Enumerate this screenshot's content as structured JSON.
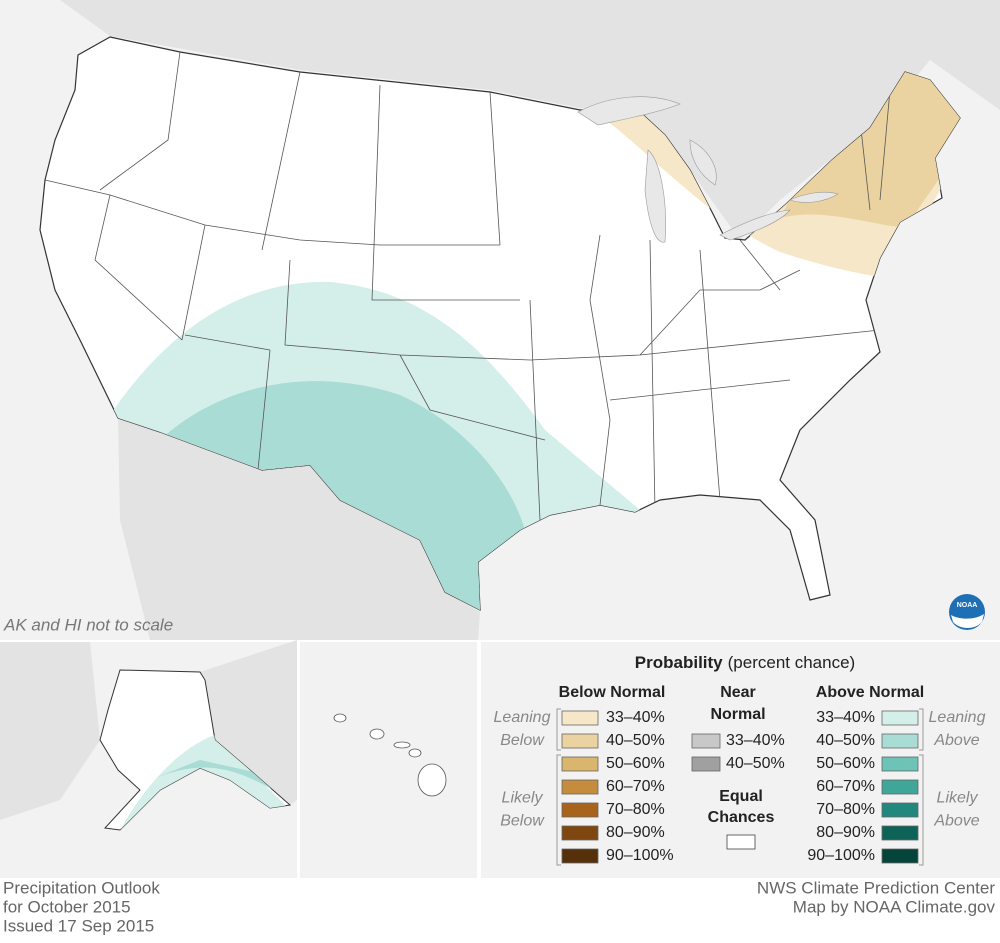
{
  "map": {
    "note": "AK and HI not to scale",
    "logo": "NOAA"
  },
  "legend": {
    "title": "Probability",
    "subtitle": "(percent chance)",
    "below": {
      "heading": [
        "Below Normal"
      ],
      "groups": [
        [
          "Leaning",
          "Below"
        ],
        [
          "Likely",
          "Below"
        ]
      ],
      "items": [
        {
          "label": "33–40%",
          "color": "#f5e7c7"
        },
        {
          "label": "40–50%",
          "color": "#ead3a0"
        },
        {
          "label": "50–60%",
          "color": "#d9b56e"
        },
        {
          "label": "60–70%",
          "color": "#c58c3e"
        },
        {
          "label": "70–80%",
          "color": "#a8631c"
        },
        {
          "label": "80–90%",
          "color": "#7f4610"
        },
        {
          "label": "90–100%",
          "color": "#55300a"
        }
      ]
    },
    "near": {
      "heading": [
        "Near",
        "Normal"
      ],
      "items": [
        {
          "label": "33–40%",
          "color": "#c8c8c8"
        },
        {
          "label": "40–50%",
          "color": "#a0a0a0"
        }
      ]
    },
    "equal": {
      "heading": [
        "Equal",
        "Chances"
      ],
      "color": "#ffffff"
    },
    "above": {
      "heading": [
        "Above Normal"
      ],
      "groups": [
        [
          "Leaning",
          "Above"
        ],
        [
          "Likely",
          "Above"
        ]
      ],
      "items": [
        {
          "label": "33–40%",
          "color": "#d4eee9"
        },
        {
          "label": "40–50%",
          "color": "#a8dcd4"
        },
        {
          "label": "50–60%",
          "color": "#6cc3b6"
        },
        {
          "label": "60–70%",
          "color": "#3fa699"
        },
        {
          "label": "70–80%",
          "color": "#22877c"
        },
        {
          "label": "80–90%",
          "color": "#0d6358"
        },
        {
          "label": "90–100%",
          "color": "#05443a"
        }
      ]
    }
  },
  "footer": {
    "left": [
      "Precipitation Outlook",
      "for October 2015",
      "Issued 17 Sep 2015"
    ],
    "right": [
      "NWS Climate Prediction Center",
      "Map by NOAA Climate.gov"
    ]
  }
}
